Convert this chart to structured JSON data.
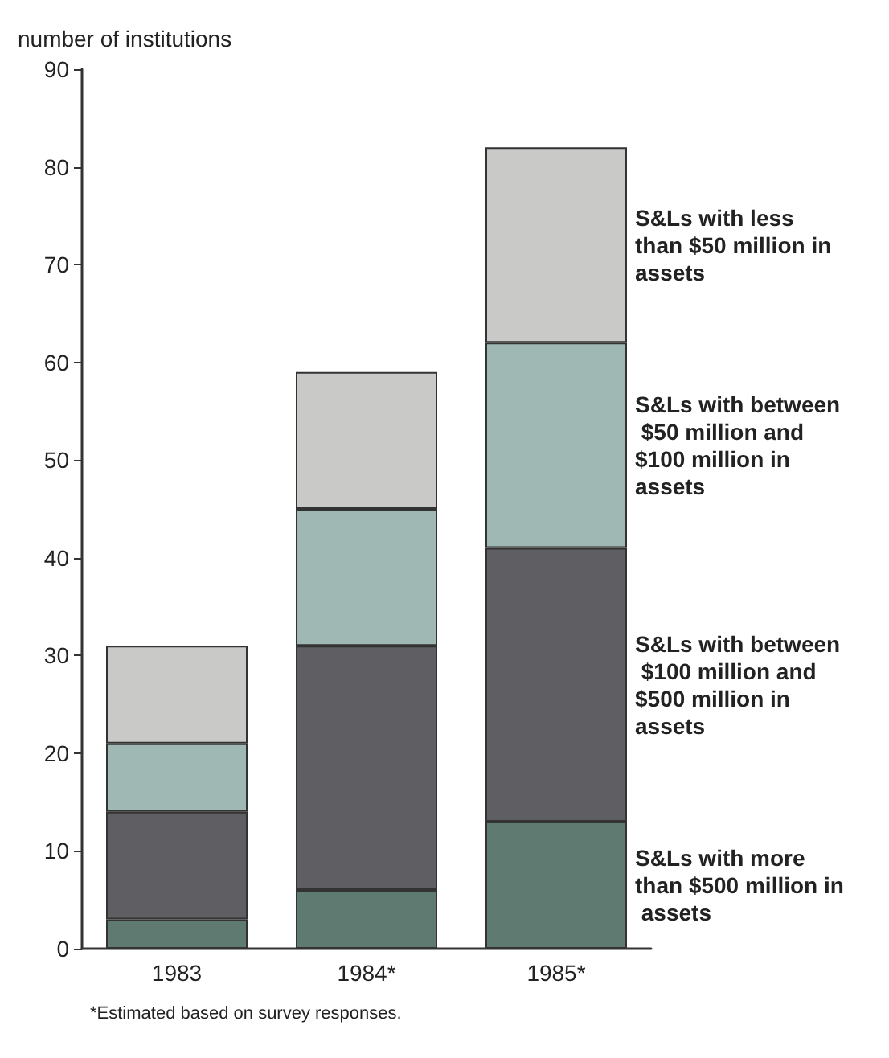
{
  "chart_data": {
    "type": "bar",
    "stacked": true,
    "ylabel": "number of institutions",
    "categories": [
      "1983",
      "1984*",
      "1985*"
    ],
    "series": [
      {
        "name": "S&Ls with more than $500 million in assets",
        "color": "#5f7a71",
        "values": [
          3,
          6,
          13
        ]
      },
      {
        "name": "S&Ls with between $100 million and $500 million in assets",
        "color": "#5f5e63",
        "values": [
          11,
          25,
          28
        ]
      },
      {
        "name": "S&Ls with between $50 million and $100 million in assets",
        "color": "#9fb8b3",
        "values": [
          7,
          14,
          21
        ]
      },
      {
        "name": "S&Ls with less than $50 million in assets",
        "color": "#c9cac8",
        "values": [
          10,
          14,
          20
        ]
      }
    ],
    "ylim": [
      0,
      90
    ],
    "yticks": [
      0,
      10,
      20,
      30,
      40,
      50,
      60,
      70,
      80,
      90
    ],
    "grid": false,
    "legend": false,
    "annotations": [
      "*Estimated based on survey responses."
    ]
  }
}
